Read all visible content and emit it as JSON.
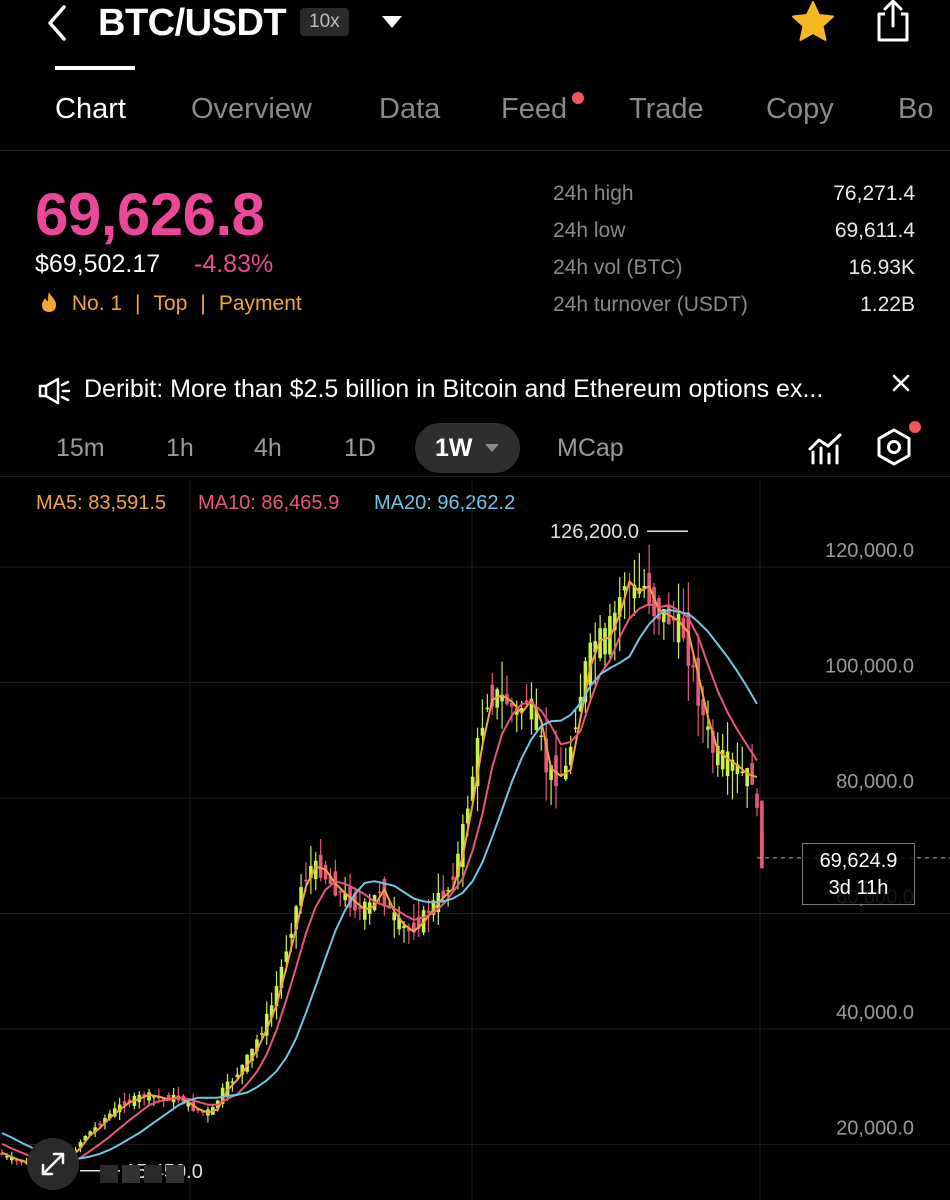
{
  "header": {
    "pair": "BTC/USDT",
    "leverage": "10x",
    "icons": [
      "back-icon",
      "chevron-down-icon",
      "star-icon",
      "share-icon"
    ],
    "star_color": "#f5b820"
  },
  "tabs": [
    {
      "label": "Chart",
      "active": true
    },
    {
      "label": "Overview"
    },
    {
      "label": "Data"
    },
    {
      "label": "Feed",
      "badge": true
    },
    {
      "label": "Trade"
    },
    {
      "label": "Copy"
    },
    {
      "label": "Bo"
    }
  ],
  "ticker": {
    "last_price": "69,626.8",
    "usd_price": "$69,502.17",
    "change": "-4.83%",
    "change_color": "#ec4899",
    "tags": [
      "No. 1",
      "Top",
      "Payment"
    ],
    "tag_color": "#f0a63a",
    "stats": [
      {
        "label": "24h high",
        "value": "76,271.4"
      },
      {
        "label": "24h low",
        "value": "69,611.4"
      },
      {
        "label": "24h vol (BTC)",
        "value": "16.93K"
      },
      {
        "label": "24h turnover (USDT)",
        "value": "1.22B"
      }
    ]
  },
  "news": {
    "text": "Deribit: More than $2.5 billion in Bitcoin and Ethereum options ex..."
  },
  "intervals": [
    {
      "label": "15m"
    },
    {
      "label": "1h"
    },
    {
      "label": "4h"
    },
    {
      "label": "1D"
    },
    {
      "label": "1W",
      "active": true
    },
    {
      "label": "MCap"
    }
  ],
  "ma": [
    {
      "label": "MA5: 83,591.5",
      "color": "#f0a63a"
    },
    {
      "label": "MA10: 86,465.9",
      "color": "#e8577a"
    },
    {
      "label": "MA20: 96,262.2",
      "color": "#6ec7e6"
    }
  ],
  "chart_data": {
    "type": "line",
    "title": "",
    "xlabel": "",
    "ylabel": "",
    "y_ticks": [
      "120,000.0",
      "100,000.0",
      "80,000.0",
      "60,000.0",
      "40,000.0",
      "20,000.0"
    ],
    "y_tick_values": [
      120000,
      100000,
      80000,
      60000,
      40000,
      20000
    ],
    "ylim": [
      12000,
      132000
    ],
    "grid": true,
    "high_label": "126,200.0",
    "high_value": 126200,
    "low_label": "15,450.0",
    "low_value": 15450,
    "last_price_label": "69,624.9",
    "countdown_label": "3d 11h",
    "last_value": 69625,
    "up_color": "#c8f04a",
    "down_color": "#e8577a",
    "series": [
      {
        "name": "MA5",
        "color": "#f0a63a",
        "values": [
          18600,
          17800,
          17200,
          16800,
          16300,
          16100,
          16500,
          17600,
          19400,
          21600,
          22900,
          24600,
          26000,
          27300,
          27900,
          28600,
          28300,
          27800,
          28200,
          27400,
          26200,
          25500,
          26100,
          29400,
          31200,
          33600,
          36300,
          39900,
          44100,
          50600,
          57500,
          64700,
          68100,
          67600,
          65200,
          63500,
          62100,
          60700,
          61300,
          64200,
          60400,
          58100,
          56900,
          58400,
          60700,
          62700,
          64300,
          69900,
          78900,
          89200,
          97000,
          97800,
          96700,
          94700,
          97000,
          93300,
          85100,
          83800,
          84900,
          93800,
          102700,
          107300,
          107800,
          111700,
          117500,
          115700,
          116700,
          112600,
          111700,
          110700,
          108600,
          101400,
          94000,
          88200,
          86800,
          85700,
          84200,
          83600
        ]
      },
      {
        "name": "MA10",
        "color": "#e8577a",
        "values": [
          20100,
          19300,
          18600,
          17900,
          17400,
          17000,
          16800,
          17000,
          17700,
          18900,
          20100,
          21400,
          22800,
          24200,
          25500,
          26800,
          27500,
          27800,
          28100,
          27900,
          27400,
          26900,
          26900,
          27900,
          28700,
          30500,
          32600,
          35600,
          39800,
          45100,
          50700,
          56600,
          61200,
          64100,
          65600,
          65100,
          64300,
          63300,
          62000,
          61400,
          60900,
          59800,
          58900,
          59300,
          60100,
          61600,
          63700,
          66100,
          70900,
          77300,
          85400,
          91100,
          94300,
          96300,
          96500,
          95100,
          92500,
          89300,
          89700,
          91600,
          96800,
          101400,
          103800,
          107900,
          111100,
          112800,
          113600,
          113000,
          113400,
          112500,
          111200,
          107900,
          103100,
          98500,
          94800,
          91800,
          89100,
          86500
        ]
      },
      {
        "name": "MA20",
        "color": "#6ec7e6",
        "values": [
          22000,
          21200,
          20300,
          19500,
          18800,
          18200,
          17700,
          17500,
          17600,
          17900,
          18400,
          19100,
          20000,
          21000,
          22000,
          23200,
          24400,
          25600,
          26800,
          27600,
          28100,
          28100,
          28100,
          28400,
          28600,
          29000,
          29900,
          31100,
          32700,
          35100,
          38400,
          42800,
          47500,
          52300,
          57000,
          60600,
          63400,
          65300,
          65600,
          65200,
          64800,
          63700,
          62600,
          62100,
          61900,
          62100,
          62600,
          63600,
          65600,
          68900,
          73300,
          78000,
          82800,
          86900,
          90200,
          92500,
          93300,
          93400,
          94400,
          96400,
          99400,
          101400,
          102500,
          103400,
          104500,
          107600,
          110100,
          111800,
          112600,
          112200,
          111900,
          110500,
          108800,
          106600,
          104400,
          101900,
          99200,
          96300
        ]
      }
    ]
  }
}
